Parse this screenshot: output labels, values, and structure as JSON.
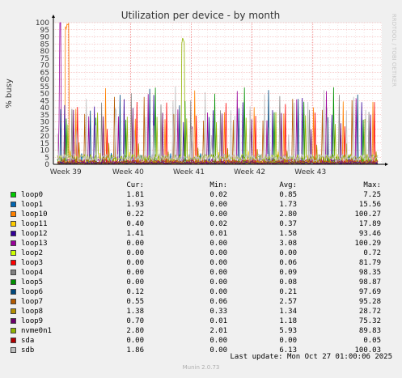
{
  "chart_data": {
    "type": "line",
    "title": "Utilization per device - by month",
    "ylabel": "% busy",
    "side_label": "RRDTOOL / TOBI OETIKER",
    "ylim": [
      0,
      100
    ],
    "y_ticks": [
      "0",
      "5",
      "10",
      "15",
      "20",
      "25",
      "30",
      "35",
      "40",
      "45",
      "50",
      "55",
      "60",
      "65",
      "70",
      "75",
      "80",
      "85",
      "90",
      "95",
      "100"
    ],
    "x_ticks": [
      "Week 39",
      "Week 40",
      "Week 41",
      "Week 42",
      "Week 43"
    ],
    "x_tick_pos": [
      0.045,
      0.235,
      0.42,
      0.605,
      0.79
    ],
    "grid": true,
    "series": [
      {
        "name": "loop0",
        "color": "#00cc00",
        "cur": "1.81",
        "min": "0.02",
        "avg": "0.85",
        "max": "7.25"
      },
      {
        "name": "loop1",
        "color": "#0066b3",
        "cur": "1.93",
        "min": "0.00",
        "avg": "1.73",
        "max": "15.56"
      },
      {
        "name": "loop10",
        "color": "#ff8000",
        "cur": "0.22",
        "min": "0.00",
        "avg": "2.80",
        "max": "100.27"
      },
      {
        "name": "loop11",
        "color": "#ffcc00",
        "cur": "0.40",
        "min": "0.02",
        "avg": "0.37",
        "max": "17.89"
      },
      {
        "name": "loop12",
        "color": "#330099",
        "cur": "1.41",
        "min": "0.01",
        "avg": "1.58",
        "max": "93.46"
      },
      {
        "name": "loop13",
        "color": "#990099",
        "cur": "0.00",
        "min": "0.00",
        "avg": "3.08",
        "max": "100.29"
      },
      {
        "name": "loop2",
        "color": "#ccff00",
        "cur": "0.00",
        "min": "0.00",
        "avg": "0.00",
        "max": "0.72"
      },
      {
        "name": "loop3",
        "color": "#ff0000",
        "cur": "0.00",
        "min": "0.00",
        "avg": "0.06",
        "max": "81.79"
      },
      {
        "name": "loop4",
        "color": "#808080",
        "cur": "0.00",
        "min": "0.00",
        "avg": "0.09",
        "max": "98.35"
      },
      {
        "name": "loop5",
        "color": "#008f00",
        "cur": "0.00",
        "min": "0.00",
        "avg": "0.08",
        "max": "98.87"
      },
      {
        "name": "loop6",
        "color": "#00487d",
        "cur": "0.12",
        "min": "0.00",
        "avg": "0.21",
        "max": "97.69"
      },
      {
        "name": "loop7",
        "color": "#b35a00",
        "cur": "0.55",
        "min": "0.06",
        "avg": "2.57",
        "max": "95.28"
      },
      {
        "name": "loop8",
        "color": "#b38f00",
        "cur": "1.38",
        "min": "0.33",
        "avg": "1.34",
        "max": "28.72"
      },
      {
        "name": "loop9",
        "color": "#6b006b",
        "cur": "0.70",
        "min": "0.01",
        "avg": "1.18",
        "max": "75.32"
      },
      {
        "name": "nvme0n1",
        "color": "#8fb300",
        "cur": "2.80",
        "min": "2.01",
        "avg": "5.93",
        "max": "89.83"
      },
      {
        "name": "sda",
        "color": "#b30000",
        "cur": "0.00",
        "min": "0.00",
        "avg": "0.00",
        "max": "0.05"
      },
      {
        "name": "sdb",
        "color": "#bebebe",
        "cur": "1.86",
        "min": "0.00",
        "avg": "6.13",
        "max": "100.03"
      }
    ]
  },
  "legend_headers": {
    "cur": "Cur:",
    "min": "Min:",
    "avg": "Avg:",
    "max": "Max:"
  },
  "last_update": "Last update: Mon Oct 27 01:00:06 2025",
  "footer": "Munin 2.0.73"
}
